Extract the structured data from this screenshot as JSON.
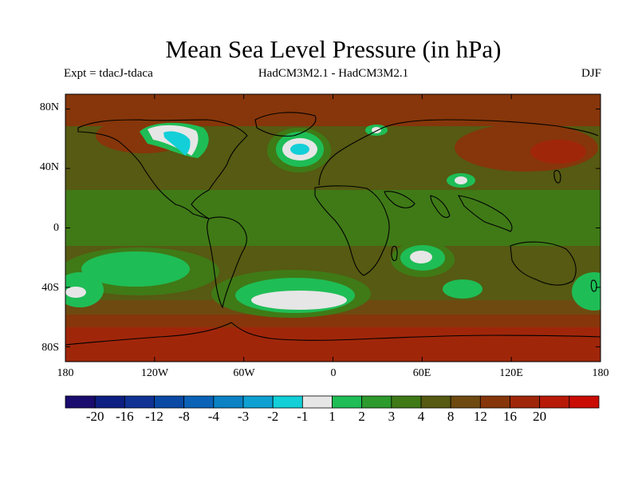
{
  "title": "Mean Sea Level Pressure (in hPa)",
  "subtitle_left": "Expt = tdacJ-tdaca",
  "subtitle_center": "HadCM3M2.1 - HadCM3M2.1",
  "subtitle_right": "DJF",
  "lat_labels": [
    "80N",
    "40N",
    "0",
    "40S",
    "80S"
  ],
  "lon_labels": [
    "180",
    "120W",
    "60W",
    "0",
    "60E",
    "120E",
    "180"
  ],
  "colorbar": {
    "colors": [
      "#1a0c6e",
      "#0d1f82",
      "#0f3294",
      "#0a4aa5",
      "#0b63b7",
      "#0b82c4",
      "#0ea0d2",
      "#12cfd8",
      "#e6e6e6",
      "#1fbd56",
      "#2c9a2c",
      "#3f7a17",
      "#565a12",
      "#6e4a10",
      "#86360a",
      "#a0260a",
      "#b81a08",
      "#c90d05"
    ],
    "labels": [
      "-20",
      "-16",
      "-12",
      "-8",
      "-4",
      "-3",
      "-2",
      "-1",
      "1",
      "2",
      "3",
      "4",
      "8",
      "12",
      "16",
      "20"
    ]
  },
  "chart_data": {
    "type": "heatmap",
    "variable": "Mean Sea Level Pressure difference",
    "units": "hPa",
    "x_range": [
      -180,
      180
    ],
    "y_range": [
      -90,
      90
    ],
    "levels": [
      -20,
      -16,
      -12,
      -8,
      -4,
      -3,
      -2,
      -1,
      1,
      2,
      3,
      4,
      8,
      12,
      16,
      20
    ],
    "background_level_range": [
      4,
      8
    ],
    "features": [
      {
        "region": "North Atlantic",
        "level_range": [
          -2,
          -1
        ]
      },
      {
        "region": "Hudson Bay / NE Canada",
        "level_range": [
          -2,
          1
        ]
      },
      {
        "region": "Central Asia",
        "level_range": [
          -1,
          1
        ]
      },
      {
        "region": "South Atlantic",
        "level_range": [
          -1,
          1
        ]
      },
      {
        "region": "SW Indian Ocean",
        "level_range": [
          -1,
          1
        ]
      },
      {
        "region": "South Pacific",
        "level_range": [
          1,
          2
        ]
      },
      {
        "region": "Southern Ocean",
        "level_range": [
          12,
          16
        ]
      },
      {
        "region": "Arctic",
        "level_range": [
          12,
          16
        ]
      },
      {
        "region": "North Pacific",
        "level_range": [
          12,
          16
        ]
      }
    ]
  }
}
